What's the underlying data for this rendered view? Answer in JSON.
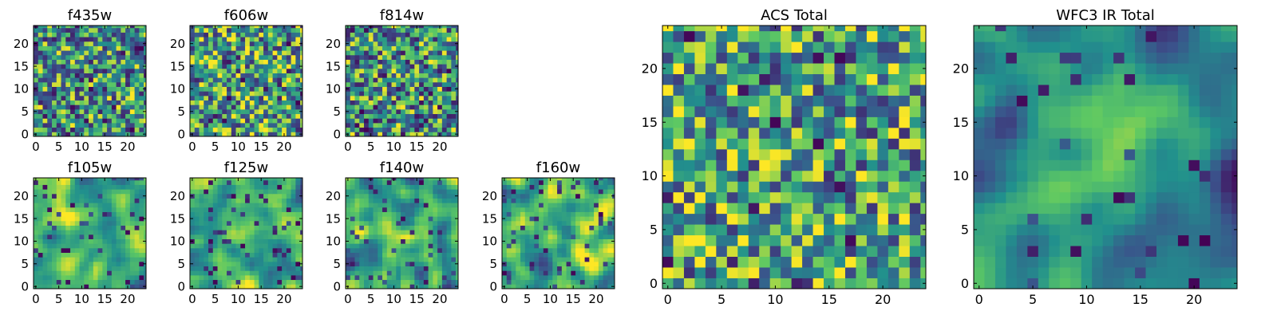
{
  "colormap": [
    "#440154",
    "#3b528b",
    "#21908d",
    "#5dc863",
    "#fde725"
  ],
  "frame_color": "#000000",
  "chart_data": [
    {
      "type": "heatmap",
      "title": "f435w",
      "size": 25,
      "xticks": [
        0,
        5,
        10,
        15,
        20
      ],
      "yticks": [
        0,
        5,
        10,
        15,
        20
      ],
      "seed": 11,
      "smooth": 0,
      "dark_fraction": 0.12,
      "lightness": 0.55
    },
    {
      "type": "heatmap",
      "title": "f606w",
      "size": 25,
      "xticks": [
        0,
        5,
        10,
        15,
        20
      ],
      "yticks": [
        0,
        5,
        10,
        15,
        20
      ],
      "seed": 23,
      "smooth": 0,
      "dark_fraction": 0.12,
      "lightness": 0.6
    },
    {
      "type": "heatmap",
      "title": "f814w",
      "size": 25,
      "xticks": [
        0,
        5,
        10,
        15,
        20
      ],
      "yticks": [
        0,
        5,
        10,
        15,
        20
      ],
      "seed": 37,
      "smooth": 0,
      "dark_fraction": 0.13,
      "lightness": 0.55
    },
    {
      "type": "heatmap",
      "title": "f105w",
      "size": 25,
      "xticks": [
        0,
        5,
        10,
        15,
        20
      ],
      "yticks": [
        0,
        5,
        10,
        15,
        20
      ],
      "seed": 41,
      "smooth": 2,
      "dark_fraction": 0.08,
      "lightness": 0.62
    },
    {
      "type": "heatmap",
      "title": "f125w",
      "size": 25,
      "xticks": [
        0,
        5,
        10,
        15,
        20
      ],
      "yticks": [
        0,
        5,
        10,
        15,
        20
      ],
      "seed": 53,
      "smooth": 2,
      "dark_fraction": 0.08,
      "lightness": 0.62
    },
    {
      "type": "heatmap",
      "title": "f140w",
      "size": 25,
      "xticks": [
        0,
        5,
        10,
        15,
        20
      ],
      "yticks": [
        0,
        5,
        10,
        15,
        20
      ],
      "seed": 67,
      "smooth": 2,
      "dark_fraction": 0.08,
      "lightness": 0.62
    },
    {
      "type": "heatmap",
      "title": "f160w",
      "size": 25,
      "xticks": [
        0,
        5,
        10,
        15,
        20
      ],
      "yticks": [
        0,
        5,
        10,
        15,
        20
      ],
      "seed": 79,
      "smooth": 2,
      "dark_fraction": 0.07,
      "lightness": 0.66
    },
    {
      "type": "heatmap",
      "title": "ACS Total",
      "size": 25,
      "xticks": [
        0,
        5,
        10,
        15,
        20
      ],
      "yticks": [
        0,
        5,
        10,
        15,
        20
      ],
      "seed": 97,
      "smooth": 0,
      "dark_fraction": 0.05,
      "lightness": 0.6
    },
    {
      "type": "heatmap",
      "title": "WFC3 IR Total",
      "size": 25,
      "xticks": [
        0,
        5,
        10,
        15,
        20
      ],
      "yticks": [
        0,
        5,
        10,
        15,
        20
      ],
      "seed": 113,
      "smooth": 3,
      "dark_fraction": 0.04,
      "lightness": 0.5,
      "bright_center": [
        12,
        12
      ]
    }
  ]
}
